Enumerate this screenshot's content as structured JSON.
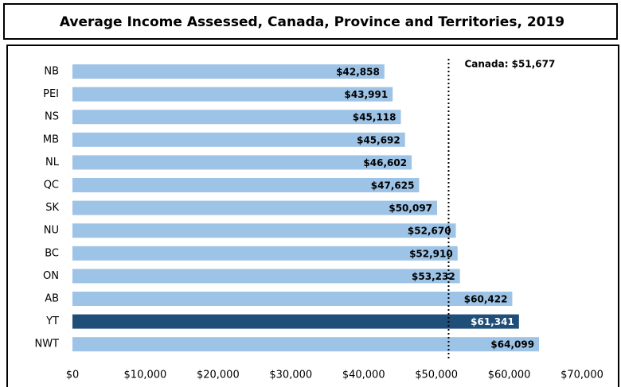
{
  "chart_data": {
    "type": "bar",
    "orientation": "horizontal",
    "title": "Average Income Assessed, Canada, Province and Territories, 2019",
    "categories": [
      "NB",
      "PEI",
      "NS",
      "MB",
      "NL",
      "QC",
      "SK",
      "NU",
      "BC",
      "ON",
      "AB",
      "YT",
      "NWT"
    ],
    "values": [
      42858,
      43991,
      45118,
      45692,
      46602,
      47625,
      50097,
      52670,
      52910,
      53232,
      60422,
      61341,
      64099
    ],
    "value_labels": [
      "$42,858",
      "$43,991",
      "$45,118",
      "$45,692",
      "$46,602",
      "$47,625",
      "$50,097",
      "$52,670",
      "$52,910",
      "$53,232",
      "$60,422",
      "$61,341",
      "$64,099"
    ],
    "colors": [
      "#9dc3e6",
      "#9dc3e6",
      "#9dc3e6",
      "#9dc3e6",
      "#9dc3e6",
      "#9dc3e6",
      "#9dc3e6",
      "#9dc3e6",
      "#9dc3e6",
      "#9dc3e6",
      "#9dc3e6",
      "#1f4e79",
      "#9dc3e6"
    ],
    "xlim": [
      0,
      70000
    ],
    "xticks": [
      {
        "value": 0,
        "label": "$0"
      },
      {
        "value": 10000,
        "label": "$10,000"
      },
      {
        "value": 20000,
        "label": "$20,000"
      },
      {
        "value": 30000,
        "label": "$30,000"
      },
      {
        "value": 40000,
        "label": "$40,000"
      },
      {
        "value": 50000,
        "label": "$50,000"
      },
      {
        "value": 60000,
        "label": "$60,000"
      },
      {
        "value": 70000,
        "label": "$70,000"
      }
    ],
    "reference_line": {
      "value": 51677,
      "label": "Canada: $51,677"
    },
    "grid": false
  }
}
